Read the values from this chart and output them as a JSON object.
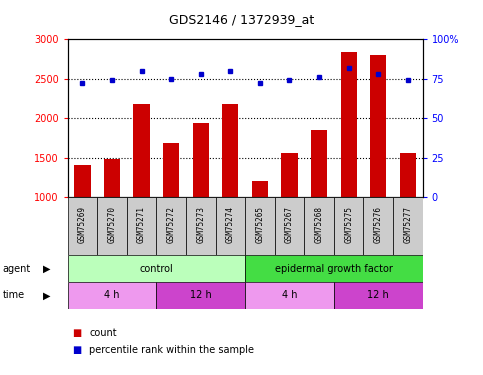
{
  "title": "GDS2146 / 1372939_at",
  "samples": [
    "GSM75269",
    "GSM75270",
    "GSM75271",
    "GSM75272",
    "GSM75273",
    "GSM75274",
    "GSM75265",
    "GSM75267",
    "GSM75268",
    "GSM75275",
    "GSM75276",
    "GSM75277"
  ],
  "counts": [
    1400,
    1480,
    2180,
    1680,
    1940,
    2175,
    1200,
    1560,
    1850,
    2840,
    2800,
    1560
  ],
  "percentiles": [
    72,
    74,
    80,
    75,
    78,
    80,
    72,
    74,
    76,
    82,
    78,
    74
  ],
  "ylim_left": [
    1000,
    3000
  ],
  "ylim_right": [
    0,
    100
  ],
  "yticks_left": [
    1000,
    1500,
    2000,
    2500,
    3000
  ],
  "yticks_right": [
    0,
    25,
    50,
    75,
    100
  ],
  "bar_color": "#cc0000",
  "dot_color": "#0000cc",
  "agent_groups": [
    {
      "label": "control",
      "start": 0,
      "end": 6,
      "color": "#bbffbb"
    },
    {
      "label": "epidermal growth factor",
      "start": 6,
      "end": 12,
      "color": "#44dd44"
    }
  ],
  "time_groups": [
    {
      "label": "4 h",
      "start": 0,
      "end": 3,
      "color": "#ee99ee"
    },
    {
      "label": "12 h",
      "start": 3,
      "end": 6,
      "color": "#cc44cc"
    },
    {
      "label": "4 h",
      "start": 6,
      "end": 9,
      "color": "#ee99ee"
    },
    {
      "label": "12 h",
      "start": 9,
      "end": 12,
      "color": "#cc44cc"
    }
  ],
  "bg_color": "#ffffff",
  "plot_bg": "#ffffff",
  "label_row_color": "#cccccc",
  "dotted_lines": [
    1500,
    2000,
    2500
  ]
}
